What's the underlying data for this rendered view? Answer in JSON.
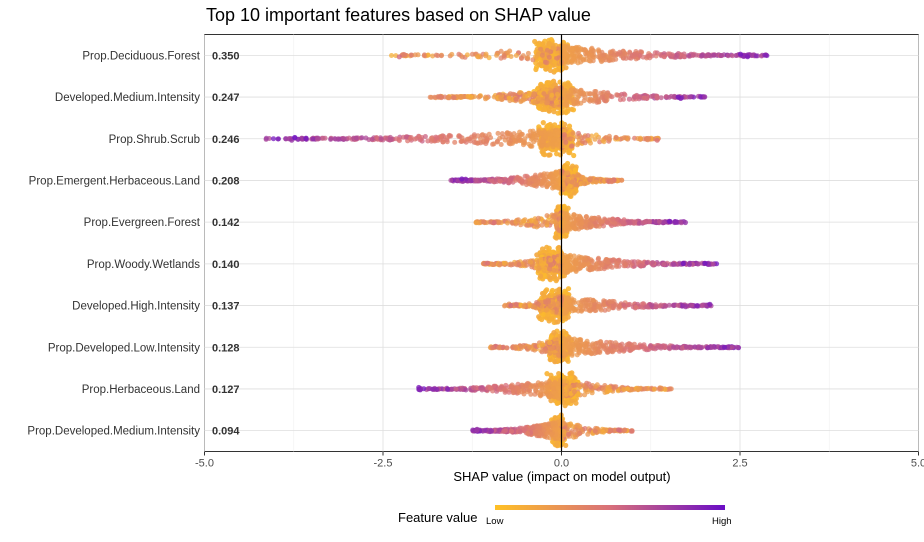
{
  "chart_data": {
    "type": "scatter",
    "subtype": "shap-beeswarm",
    "title": "Top 10 important features based on SHAP value",
    "xlabel": "SHAP value (impact on model output)",
    "xlim": [
      -5.0,
      5.0
    ],
    "xticks": [
      "-5.0",
      "-2.5",
      "0.0",
      "2.5",
      "5.0"
    ],
    "xtick_values": [
      -5.0,
      -2.5,
      0.0,
      2.5,
      5.0
    ],
    "grid": true,
    "legend": {
      "title": "Feature value",
      "low_label": "Low",
      "high_label": "High",
      "position": "bottom",
      "low_color": "#FFC125",
      "high_color": "#6A0DC6"
    },
    "features": [
      {
        "name": "Prop.Deciduous.Forest",
        "mean_abs_shap": "0.350",
        "min": -2.45,
        "max": 2.92,
        "core_min": -0.35,
        "core_max": 0.05,
        "skew": 0.8
      },
      {
        "name": "Developed.Medium.Intensity",
        "mean_abs_shap": "0.247",
        "min": -1.85,
        "max": 2.02,
        "core_min": -0.35,
        "core_max": 0.15,
        "skew": 0.0
      },
      {
        "name": "Prop.Shrub.Scrub",
        "mean_abs_shap": "0.246",
        "min": -4.15,
        "max": 1.38,
        "core_min": -0.3,
        "core_max": 0.15,
        "skew": -0.7
      },
      {
        "name": "Prop.Emergent.Herbaceous.Land",
        "mean_abs_shap": "0.208",
        "min": -1.55,
        "max": 0.85,
        "core_min": 0.05,
        "core_max": 0.2,
        "skew": -0.3
      },
      {
        "name": "Prop.Evergreen.Forest",
        "mean_abs_shap": "0.142",
        "min": -1.2,
        "max": 1.75,
        "core_min": -0.05,
        "core_max": 0.05,
        "skew": 0.6
      },
      {
        "name": "Prop.Woody.Wetlands",
        "mean_abs_shap": "0.140",
        "min": -1.1,
        "max": 2.18,
        "core_min": -0.3,
        "core_max": 0.0,
        "skew": 0.5
      },
      {
        "name": "Developed.High.Intensity",
        "mean_abs_shap": "0.137",
        "min": -0.8,
        "max": 2.12,
        "core_min": -0.3,
        "core_max": 0.1,
        "skew": 0.4
      },
      {
        "name": "Prop.Developed.Low.Intensity",
        "mean_abs_shap": "0.128",
        "min": -1.0,
        "max": 2.5,
        "core_min": -0.15,
        "core_max": 0.1,
        "skew": 0.7
      },
      {
        "name": "Prop.Herbaceous.Land",
        "mean_abs_shap": "0.127",
        "min": -2.0,
        "max": 1.55,
        "core_min": -0.15,
        "core_max": 0.2,
        "skew": -0.5
      },
      {
        "name": "Prop.Developed.Medium.Intensity",
        "mean_abs_shap": "0.094",
        "min": -1.25,
        "max": 1.0,
        "core_min": -0.1,
        "core_max": 0.0,
        "skew": -0.6
      }
    ]
  }
}
